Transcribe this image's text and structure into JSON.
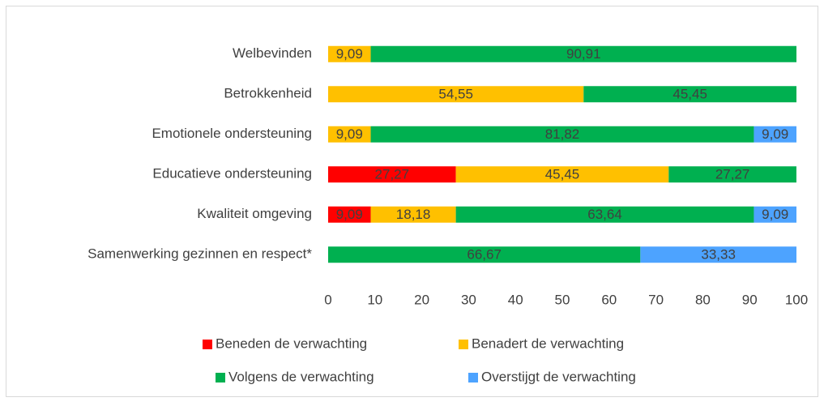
{
  "chart_data": {
    "type": "stacked-bar-horizontal",
    "categories": [
      "Welbevinden",
      "Betrokkenheid",
      "Emotionele ondersteuning",
      "Educatieve ondersteuning",
      "Kwaliteit omgeving",
      "Samenwerking gezinnen en respect*"
    ],
    "series": [
      {
        "name": "Beneden de verwachting",
        "color": "#ff0000",
        "values": [
          null,
          null,
          null,
          27.27,
          9.09,
          null
        ],
        "value_labels": [
          null,
          null,
          null,
          "27,27",
          "9,09",
          null
        ]
      },
      {
        "name": "Benadert de verwachting",
        "color": "#ffc000",
        "values": [
          9.09,
          54.55,
          9.09,
          45.45,
          18.18,
          null
        ],
        "value_labels": [
          "9,09",
          "54,55",
          "9,09",
          "45,45",
          "18,18",
          null
        ]
      },
      {
        "name": "Volgens de verwachting",
        "color": "#00b050",
        "values": [
          90.91,
          45.45,
          81.82,
          27.27,
          63.64,
          66.67
        ],
        "value_labels": [
          "90,91",
          "45,45",
          "81,82",
          "27,27",
          "63,64",
          "66,67"
        ]
      },
      {
        "name": "Overstijgt de verwachting",
        "color": "#4da3ff",
        "values": [
          null,
          null,
          9.09,
          null,
          9.09,
          33.33
        ],
        "value_labels": [
          null,
          null,
          "9,09",
          null,
          "9,09",
          "33,33"
        ]
      }
    ],
    "xlim": [
      0,
      100
    ],
    "xticks": [
      0,
      10,
      20,
      30,
      40,
      50,
      60,
      70,
      80,
      90,
      100
    ]
  }
}
